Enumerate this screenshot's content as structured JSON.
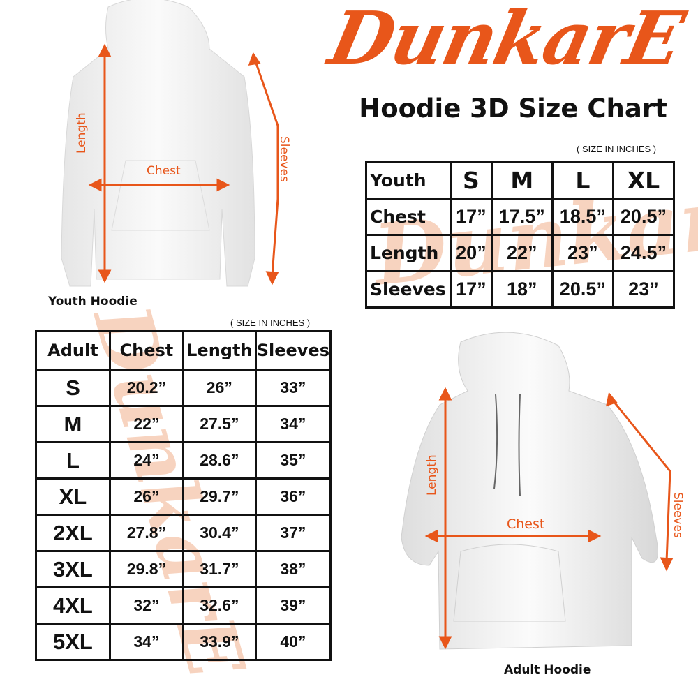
{
  "brand": {
    "logo_text": "DunkarE",
    "color": "#e8561a"
  },
  "title": "Hoodie 3D Size Chart",
  "youth": {
    "units_note": "( SIZE IN INCHES )",
    "image_label": "Youth Hoodie",
    "measure_labels": {
      "length": "Length",
      "chest": "Chest",
      "sleeves": "Sleeves"
    },
    "table": {
      "corner": "Youth",
      "sizes": [
        "S",
        "M",
        "L",
        "XL"
      ],
      "rows": [
        {
          "label": "Chest",
          "values": [
            "17”",
            "17.5”",
            "18.5”",
            "20.5”"
          ]
        },
        {
          "label": "Length",
          "values": [
            "20”",
            "22”",
            "23”",
            "24.5”"
          ]
        },
        {
          "label": "Sleeves",
          "values": [
            "17”",
            "18”",
            "20.5”",
            "23”"
          ]
        }
      ]
    }
  },
  "adult": {
    "units_note": "( SIZE IN INCHES )",
    "image_label": "Adult Hoodie",
    "measure_labels": {
      "length": "Length",
      "chest": "Chest",
      "sleeves": "Sleeves"
    },
    "table": {
      "headers": [
        "Adult",
        "Chest",
        "Length",
        "Sleeves"
      ],
      "rows": [
        {
          "size": "S",
          "values": [
            "20.2”",
            "26”",
            "33”"
          ]
        },
        {
          "size": "M",
          "values": [
            "22”",
            "27.5”",
            "34”"
          ]
        },
        {
          "size": "L",
          "values": [
            "24”",
            "28.6”",
            "35”"
          ]
        },
        {
          "size": "XL",
          "values": [
            "26”",
            "29.7”",
            "36”"
          ]
        },
        {
          "size": "2XL",
          "values": [
            "27.8”",
            "30.4”",
            "37”"
          ]
        },
        {
          "size": "3XL",
          "values": [
            "29.8”",
            "31.7”",
            "38”"
          ]
        },
        {
          "size": "4XL",
          "values": [
            "32”",
            "32.6”",
            "39”"
          ]
        },
        {
          "size": "5XL",
          "values": [
            "34”",
            "33.9”",
            "40”"
          ]
        }
      ]
    }
  }
}
